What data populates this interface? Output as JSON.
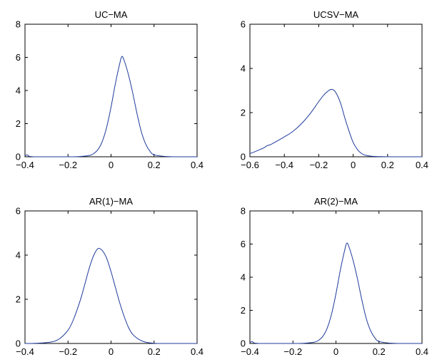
{
  "colors": {
    "curve": "#1f3b9c",
    "axes": "#000000",
    "background": "#ffffff"
  },
  "chart_data": [
    {
      "type": "line",
      "title": "UC−MA",
      "xlabel": "",
      "ylabel": "",
      "xlim": [
        -0.4,
        0.4
      ],
      "ylim": [
        0,
        8
      ],
      "xticks": [
        -0.4,
        -0.2,
        0,
        0.2,
        0.4
      ],
      "xtick_labels": [
        "−0.4",
        "−0.2",
        "0",
        "0.2",
        "0.4"
      ],
      "yticks": [
        0,
        2,
        4,
        6,
        8
      ],
      "ytick_labels": [
        "0",
        "2",
        "4",
        "6",
        "8"
      ],
      "grid": false,
      "series": [
        {
          "x": [
            -0.4,
            -0.39,
            -0.38,
            -0.35,
            -0.3,
            -0.2,
            -0.15,
            -0.1,
            -0.08,
            -0.06,
            -0.04,
            -0.02,
            0,
            0.02,
            0.04,
            0.05,
            0.06,
            0.08,
            0.1,
            0.12,
            0.14,
            0.16,
            0.18,
            0.2,
            0.25,
            0.3,
            0.4
          ],
          "y": [
            0.05,
            0.12,
            0.03,
            0,
            0,
            0,
            0.01,
            0.08,
            0.2,
            0.45,
            0.95,
            1.8,
            3.0,
            4.4,
            5.6,
            6.05,
            5.85,
            5.0,
            3.9,
            2.65,
            1.55,
            0.8,
            0.35,
            0.12,
            0.02,
            0,
            0
          ]
        }
      ]
    },
    {
      "type": "line",
      "title": "UCSV−MA",
      "xlabel": "",
      "ylabel": "",
      "xlim": [
        -0.6,
        0.4
      ],
      "ylim": [
        0,
        6
      ],
      "xticks": [
        -0.6,
        -0.4,
        -0.2,
        0,
        0.2,
        0.4
      ],
      "xtick_labels": [
        "−0.6",
        "−0.4",
        "−0.2",
        "0",
        "0.2",
        "0.4"
      ],
      "yticks": [
        0,
        2,
        4,
        6
      ],
      "ytick_labels": [
        "0",
        "2",
        "4",
        "6"
      ],
      "grid": false,
      "series": [
        {
          "x": [
            -0.6,
            -0.58,
            -0.55,
            -0.52,
            -0.5,
            -0.48,
            -0.45,
            -0.4,
            -0.35,
            -0.3,
            -0.25,
            -0.2,
            -0.17,
            -0.15,
            -0.13,
            -0.11,
            -0.09,
            -0.07,
            -0.05,
            -0.03,
            0,
            0.03,
            0.06,
            0.1,
            0.15,
            0.2,
            0.3,
            0.4
          ],
          "y": [
            0.15,
            0.2,
            0.3,
            0.4,
            0.5,
            0.55,
            0.68,
            0.9,
            1.15,
            1.5,
            1.95,
            2.5,
            2.8,
            2.95,
            3.05,
            3.0,
            2.75,
            2.35,
            1.8,
            1.3,
            0.65,
            0.28,
            0.1,
            0.03,
            0.01,
            0,
            0,
            0
          ]
        }
      ]
    },
    {
      "type": "line",
      "title": "AR(1)−MA",
      "xlabel": "",
      "ylabel": "",
      "xlim": [
        -0.4,
        0.4
      ],
      "ylim": [
        0,
        6
      ],
      "xticks": [
        -0.4,
        -0.2,
        0,
        0.2,
        0.4
      ],
      "xtick_labels": [
        "−0.4",
        "−0.2",
        "0",
        "0.2",
        "0.4"
      ],
      "yticks": [
        0,
        2,
        4,
        6
      ],
      "ytick_labels": [
        "0",
        "2",
        "4",
        "6"
      ],
      "grid": false,
      "series": [
        {
          "x": [
            -0.4,
            -0.35,
            -0.3,
            -0.25,
            -0.2,
            -0.17,
            -0.14,
            -0.12,
            -0.1,
            -0.08,
            -0.06,
            -0.04,
            -0.02,
            0,
            0.02,
            0.04,
            0.06,
            0.08,
            0.1,
            0.13,
            0.16,
            0.2,
            0.25,
            0.3,
            0.4
          ],
          "y": [
            0,
            0.01,
            0.04,
            0.15,
            0.6,
            1.2,
            2.05,
            2.75,
            3.45,
            4.0,
            4.3,
            4.2,
            3.85,
            3.25,
            2.55,
            1.85,
            1.25,
            0.75,
            0.42,
            0.18,
            0.06,
            0.01,
            0,
            0,
            0
          ]
        }
      ]
    },
    {
      "type": "line",
      "title": "AR(2)−MA",
      "xlabel": "",
      "ylabel": "",
      "xlim": [
        -0.4,
        0.4
      ],
      "ylim": [
        0,
        8
      ],
      "xticks": [
        -0.4,
        -0.2,
        0,
        0.2,
        0.4
      ],
      "xtick_labels": [
        "−0.4",
        "−0.2",
        "0",
        "0.2",
        "0.4"
      ],
      "yticks": [
        0,
        2,
        4,
        6,
        8
      ],
      "ytick_labels": [
        "0",
        "2",
        "4",
        "6",
        "8"
      ],
      "grid": false,
      "series": [
        {
          "x": [
            -0.4,
            -0.39,
            -0.38,
            -0.35,
            -0.3,
            -0.2,
            -0.15,
            -0.1,
            -0.08,
            -0.06,
            -0.04,
            -0.02,
            0,
            0.02,
            0.04,
            0.05,
            0.06,
            0.08,
            0.1,
            0.12,
            0.14,
            0.16,
            0.18,
            0.2,
            0.25,
            0.3,
            0.4
          ],
          "y": [
            0.05,
            0.12,
            0.03,
            0,
            0,
            0,
            0.01,
            0.08,
            0.2,
            0.45,
            0.95,
            1.8,
            3.0,
            4.4,
            5.6,
            6.05,
            5.85,
            5.0,
            3.9,
            2.65,
            1.55,
            0.8,
            0.35,
            0.12,
            0.02,
            0,
            0
          ]
        }
      ]
    }
  ]
}
